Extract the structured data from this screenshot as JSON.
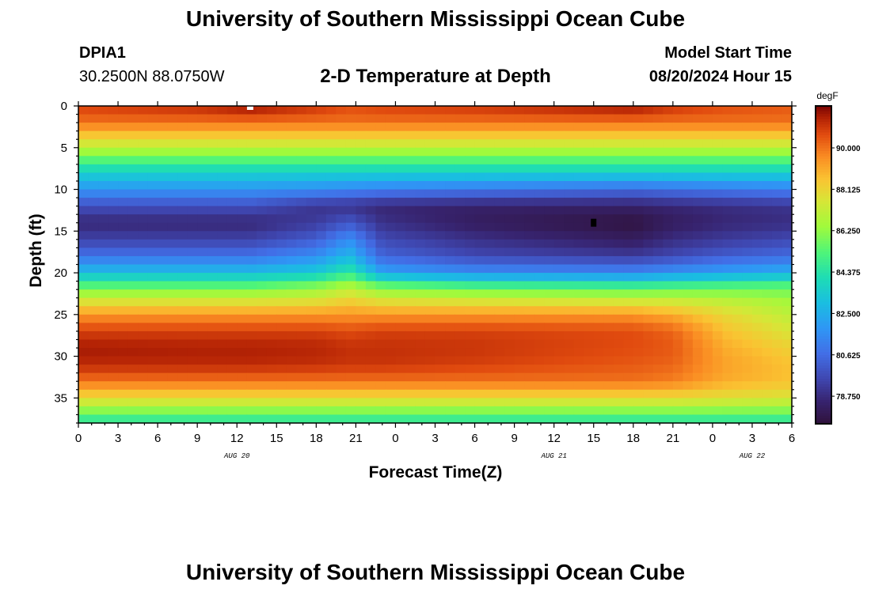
{
  "header": {
    "title": "University of Southern Mississippi Ocean Cube",
    "station_id": "DPIA1",
    "coordinates": "30.2500N  88.0750W",
    "subtitle": "2-D Temperature at Depth",
    "model_start_label": "Model Start Time",
    "model_start_value": "08/20/2024 Hour 15"
  },
  "footer": {
    "title": "University of Southern Mississippi Ocean Cube"
  },
  "chart_data": {
    "type": "heatmap",
    "title": "2-D Temperature at Depth",
    "xlabel": "Forecast Time(Z)",
    "ylabel": "Depth (ft)",
    "x_ticks": [
      "0",
      "3",
      "6",
      "9",
      "12",
      "15",
      "18",
      "21",
      "0",
      "3",
      "6",
      "9",
      "12",
      "15",
      "18",
      "21",
      "0",
      "3",
      "6"
    ],
    "x_hours_range": [
      0,
      54
    ],
    "date_labels": [
      {
        "text": "AUG 20",
        "tick_index": 4
      },
      {
        "text": "AUG 21",
        "tick_index": 12
      },
      {
        "text": "AUG 22",
        "tick_index": 17
      }
    ],
    "y_ticks": [
      0,
      5,
      10,
      15,
      20,
      25,
      30,
      35
    ],
    "ylim": [
      0,
      38
    ],
    "colorbar": {
      "unit": "degF",
      "min": 77.5,
      "max": 91.9,
      "ticks": [
        "90.000",
        "88.125",
        "86.250",
        "84.375",
        "82.500",
        "80.625",
        "78.750"
      ],
      "tick_values": [
        90.0,
        88.125,
        86.25,
        84.375,
        82.5,
        80.625,
        78.75
      ]
    },
    "profile_columns_hours": [
      0,
      9,
      13,
      18,
      20.5,
      23,
      30,
      42,
      45,
      49,
      54
    ],
    "profile_depths_ft": [
      0,
      2,
      5,
      8,
      10,
      12,
      14,
      16,
      18,
      20,
      21.5,
      23,
      25,
      27,
      29,
      31,
      33,
      35,
      37,
      38
    ],
    "profiles_degF": [
      [
        90.8,
        90.0,
        87.0,
        83.6,
        81.8,
        79.8,
        78.6,
        79.4,
        80.8,
        83.0,
        85.2,
        87.2,
        89.4,
        90.8,
        91.5,
        91.2,
        90.0,
        88.0,
        85.5,
        84.2
      ],
      [
        91.2,
        90.0,
        87.0,
        83.6,
        81.8,
        79.8,
        78.6,
        79.4,
        80.8,
        83.0,
        85.2,
        87.2,
        89.4,
        90.8,
        91.4,
        91.2,
        90.0,
        88.0,
        85.5,
        84.2
      ],
      [
        91.7,
        90.0,
        87.0,
        83.6,
        81.8,
        79.8,
        78.6,
        79.4,
        80.8,
        83.0,
        85.2,
        87.2,
        89.4,
        90.8,
        91.4,
        91.2,
        90.0,
        88.0,
        85.5,
        84.2
      ],
      [
        91.0,
        90.0,
        87.0,
        83.6,
        81.6,
        79.0,
        79.2,
        80.2,
        81.6,
        83.4,
        85.8,
        87.4,
        89.4,
        90.8,
        91.3,
        91.1,
        90.0,
        88.0,
        85.5,
        84.2
      ],
      [
        90.6,
        90.0,
        87.0,
        83.6,
        81.4,
        78.9,
        80.0,
        81.6,
        82.8,
        84.6,
        86.6,
        88.0,
        89.4,
        90.6,
        91.1,
        91.0,
        90.0,
        88.0,
        85.5,
        84.2
      ],
      [
        90.8,
        90.0,
        87.0,
        83.6,
        81.2,
        78.6,
        78.9,
        79.6,
        80.4,
        82.2,
        85.4,
        87.4,
        89.4,
        90.8,
        91.1,
        91.0,
        90.0,
        88.0,
        85.5,
        84.2
      ],
      [
        91.0,
        90.0,
        87.0,
        83.6,
        81.0,
        78.4,
        78.2,
        78.9,
        79.6,
        81.6,
        84.8,
        87.2,
        89.4,
        90.8,
        91.0,
        90.8,
        90.0,
        88.0,
        85.5,
        84.2
      ],
      [
        91.6,
        90.0,
        87.0,
        83.6,
        80.6,
        78.4,
        77.6,
        78.2,
        79.2,
        81.4,
        84.6,
        87.0,
        89.4,
        90.6,
        90.6,
        90.4,
        90.0,
        88.0,
        85.5,
        84.2
      ],
      [
        91.0,
        90.0,
        87.0,
        83.6,
        80.8,
        78.6,
        78.2,
        78.8,
        79.6,
        81.8,
        84.8,
        87.0,
        89.0,
        90.2,
        90.4,
        90.2,
        89.8,
        88.0,
        85.5,
        84.2
      ],
      [
        90.6,
        90.0,
        87.0,
        83.6,
        81.0,
        78.8,
        78.6,
        79.2,
        80.2,
        82.2,
        85.0,
        86.8,
        88.0,
        88.6,
        89.0,
        89.2,
        89.0,
        87.8,
        85.5,
        84.2
      ],
      [
        90.4,
        90.0,
        87.0,
        83.6,
        81.2,
        79.0,
        78.8,
        79.6,
        80.6,
        82.6,
        85.2,
        86.4,
        87.0,
        87.6,
        88.2,
        88.6,
        88.6,
        87.6,
        85.5,
        84.2
      ]
    ],
    "markers": [
      {
        "name": "white-marker",
        "hour": 13,
        "depth_ft": 0.2,
        "color": "#ffffff"
      },
      {
        "name": "black-marker",
        "hour": 39,
        "depth_ft": 14,
        "color": "#000000"
      }
    ]
  }
}
